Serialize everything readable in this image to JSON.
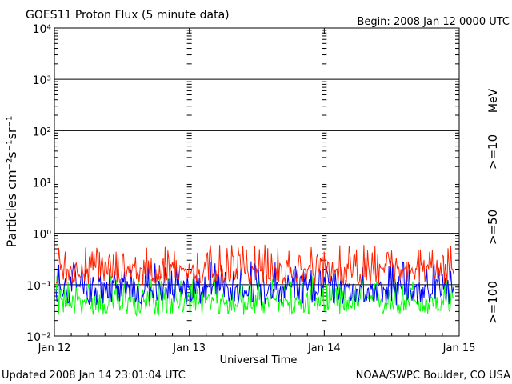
{
  "title": "GOES11 Proton Flux (5 minute data)",
  "begin_text": "Begin: 2008 Jan 12 0000 UTC",
  "updated_text": "Updated 2008 Jan 14 23:01:04 UTC",
  "credit_text": "NOAA/SWPC Boulder, CO USA",
  "xlabel": "Universal Time",
  "ylabel": "Particles cm⁻²s⁻¹sr⁻¹",
  "unit_label": "MeV",
  "colors": {
    "red": "#ff2200",
    "blue": "#0000ff",
    "green": "#00ff00",
    "axis": "#000000"
  },
  "chart_data": {
    "type": "line",
    "title": "GOES11 Proton Flux (5 minute data)",
    "xlabel": "Universal Time",
    "ylabel": "Particles cm-2 s-1 sr-1",
    "y_scale": "log",
    "ylim": [
      0.01,
      10000
    ],
    "y_tick_values": [
      0.01,
      0.1,
      1,
      10,
      100,
      1000,
      10000
    ],
    "y_tick_labels": [
      "10⁻²",
      "10⁻¹",
      "10⁰",
      "10¹",
      "10²",
      "10³",
      "10⁴"
    ],
    "x_tick_labels": [
      "Jan 12",
      "Jan 13",
      "Jan 14",
      "Jan 15"
    ],
    "xlim": [
      "2008-01-12T00:00",
      "2008-01-15T00:00"
    ],
    "data_end": "2008-01-14T23:00",
    "legend_placement": "right (vertical)",
    "series": [
      {
        "name": ">=10",
        "color": "#ff2200",
        "typical_value": 0.2,
        "min_value": 0.1,
        "max_value": 0.6
      },
      {
        "name": ">=50",
        "color": "#0000ff",
        "typical_value": 0.09,
        "min_value": 0.04,
        "max_value": 0.3
      },
      {
        "name": ">=100",
        "color": "#00ff00",
        "typical_value": 0.05,
        "min_value": 0.025,
        "max_value": 0.15
      }
    ]
  }
}
